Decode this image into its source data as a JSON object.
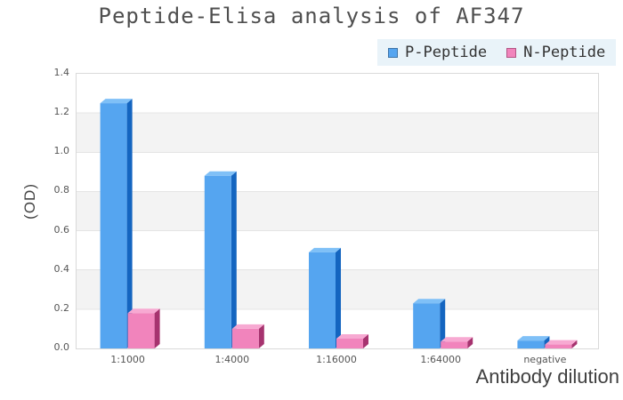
{
  "page": {
    "background": "#ffffff"
  },
  "header": {
    "title": "Peptide-Elisa analysis of AF347",
    "title_color": "#4f4f4f"
  },
  "legend": {
    "background": "#e9f3f9",
    "items": [
      {
        "label": "P-Peptide",
        "color": "#55a5f0",
        "border": "#3d74a8"
      },
      {
        "label": "N-Peptide",
        "color": "#f184bc",
        "border": "#b35585"
      }
    ]
  },
  "axes": {
    "y_title": "(OD)",
    "x_title": "Antibody dilution",
    "y_tick_labels": [
      "1.4",
      "1.2",
      "1.0",
      "0.8",
      "0.6",
      "0.4",
      "0.2",
      "0.0"
    ]
  },
  "chart_data": {
    "type": "bar",
    "title": "Peptide-Elisa analysis of AF347",
    "xlabel": "Antibody dilution",
    "ylabel": "(OD)",
    "categories": [
      "1:1000",
      "1:4000",
      "1:16000",
      "1:64000",
      "negative"
    ],
    "series": [
      {
        "name": "P-Peptide",
        "values": [
          1.25,
          0.88,
          0.49,
          0.23,
          0.04
        ],
        "face_color": "#55a5f0",
        "top_color": "#7fc0f7",
        "side_color": "#1465c0"
      },
      {
        "name": "N-Peptide",
        "values": [
          0.18,
          0.1,
          0.05,
          0.035,
          0.02
        ],
        "face_color": "#f184bc",
        "top_color": "#f7a9d2",
        "side_color": "#a6336f"
      }
    ],
    "ylim": [
      0,
      1.4
    ],
    "ytick_step": 0.2,
    "grid": "horizontal-bands",
    "band_colors": [
      "#ffffff",
      "#f3f3f3"
    ],
    "gridline_color": "#e4e4e4",
    "legend_position": "top-right",
    "style": "2.5d-bars"
  }
}
